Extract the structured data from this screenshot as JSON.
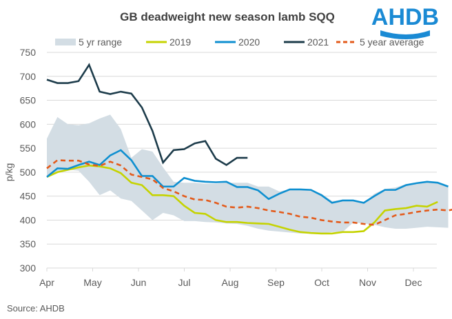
{
  "logo": "AHDB",
  "source": "Source: AHDB",
  "chart_data": {
    "type": "line",
    "title": "GB deadweight new season lamb SQQ",
    "xlabel": "",
    "ylabel": "p/kg",
    "ylim": [
      300,
      750
    ],
    "yticks": [
      300,
      350,
      400,
      450,
      500,
      550,
      600,
      650,
      700,
      750
    ],
    "xticks": [
      "Apr",
      "May",
      "Jun",
      "Jul",
      "Aug",
      "Sep",
      "Oct",
      "Nov",
      "Dec"
    ],
    "xlim_weeks": [
      0,
      38
    ],
    "grid": true,
    "legend": "top",
    "colors": {
      "range": "#d3dde4",
      "2019": "#c5d300",
      "2020": "#0e8fd0",
      "2021": "#1c3b4a",
      "avg": "#e35a1a"
    },
    "range_upper": [
      570,
      615,
      600,
      598,
      602,
      612,
      620,
      590,
      530,
      548,
      543,
      510,
      480,
      478,
      478,
      476,
      476,
      478,
      478,
      478,
      470,
      470,
      460,
      464,
      464,
      462,
      455,
      440,
      442,
      442,
      435,
      455,
      465,
      468,
      475,
      475,
      480,
      478,
      472
    ],
    "range_lower": [
      490,
      500,
      505,
      503,
      480,
      452,
      462,
      445,
      440,
      420,
      400,
      415,
      410,
      398,
      398,
      396,
      395,
      393,
      392,
      388,
      382,
      378,
      376,
      374,
      372,
      372,
      372,
      375,
      375,
      395,
      393,
      390,
      385,
      382,
      382,
      384,
      386,
      385,
      384
    ],
    "series": [
      {
        "name": "2019",
        "values": [
          490,
          500,
          505,
          510,
          514,
          512,
          508,
          498,
          478,
          473,
          452,
          452,
          450,
          430,
          415,
          413,
          400,
          396,
          396,
          394,
          393,
          392,
          386,
          380,
          375,
          373,
          372,
          372,
          375,
          375,
          377,
          395,
          420,
          423,
          425,
          430,
          428,
          438
        ]
      },
      {
        "name": "2020",
        "values": [
          490,
          508,
          507,
          515,
          522,
          515,
          535,
          546,
          525,
          492,
          492,
          470,
          470,
          488,
          482,
          480,
          479,
          480,
          469,
          469,
          462,
          444,
          455,
          464,
          464,
          463,
          452,
          436,
          441,
          441,
          436,
          450,
          463,
          463,
          473,
          477,
          480,
          478,
          470
        ]
      },
      {
        "name": "2021",
        "values": [
          693,
          686,
          686,
          690,
          724,
          668,
          663,
          668,
          664,
          635,
          586,
          520,
          546,
          548,
          560,
          565,
          528,
          515,
          530,
          530
        ]
      },
      {
        "name": "5 year average",
        "values": [
          508,
          525,
          524,
          524,
          516,
          513,
          522,
          514,
          495,
          490,
          485,
          467,
          460,
          450,
          443,
          442,
          436,
          428,
          426,
          428,
          425,
          420,
          417,
          413,
          407,
          405,
          400,
          397,
          395,
          395,
          392,
          390,
          400,
          410,
          413,
          417,
          420,
          422,
          420,
          425
        ]
      }
    ]
  }
}
